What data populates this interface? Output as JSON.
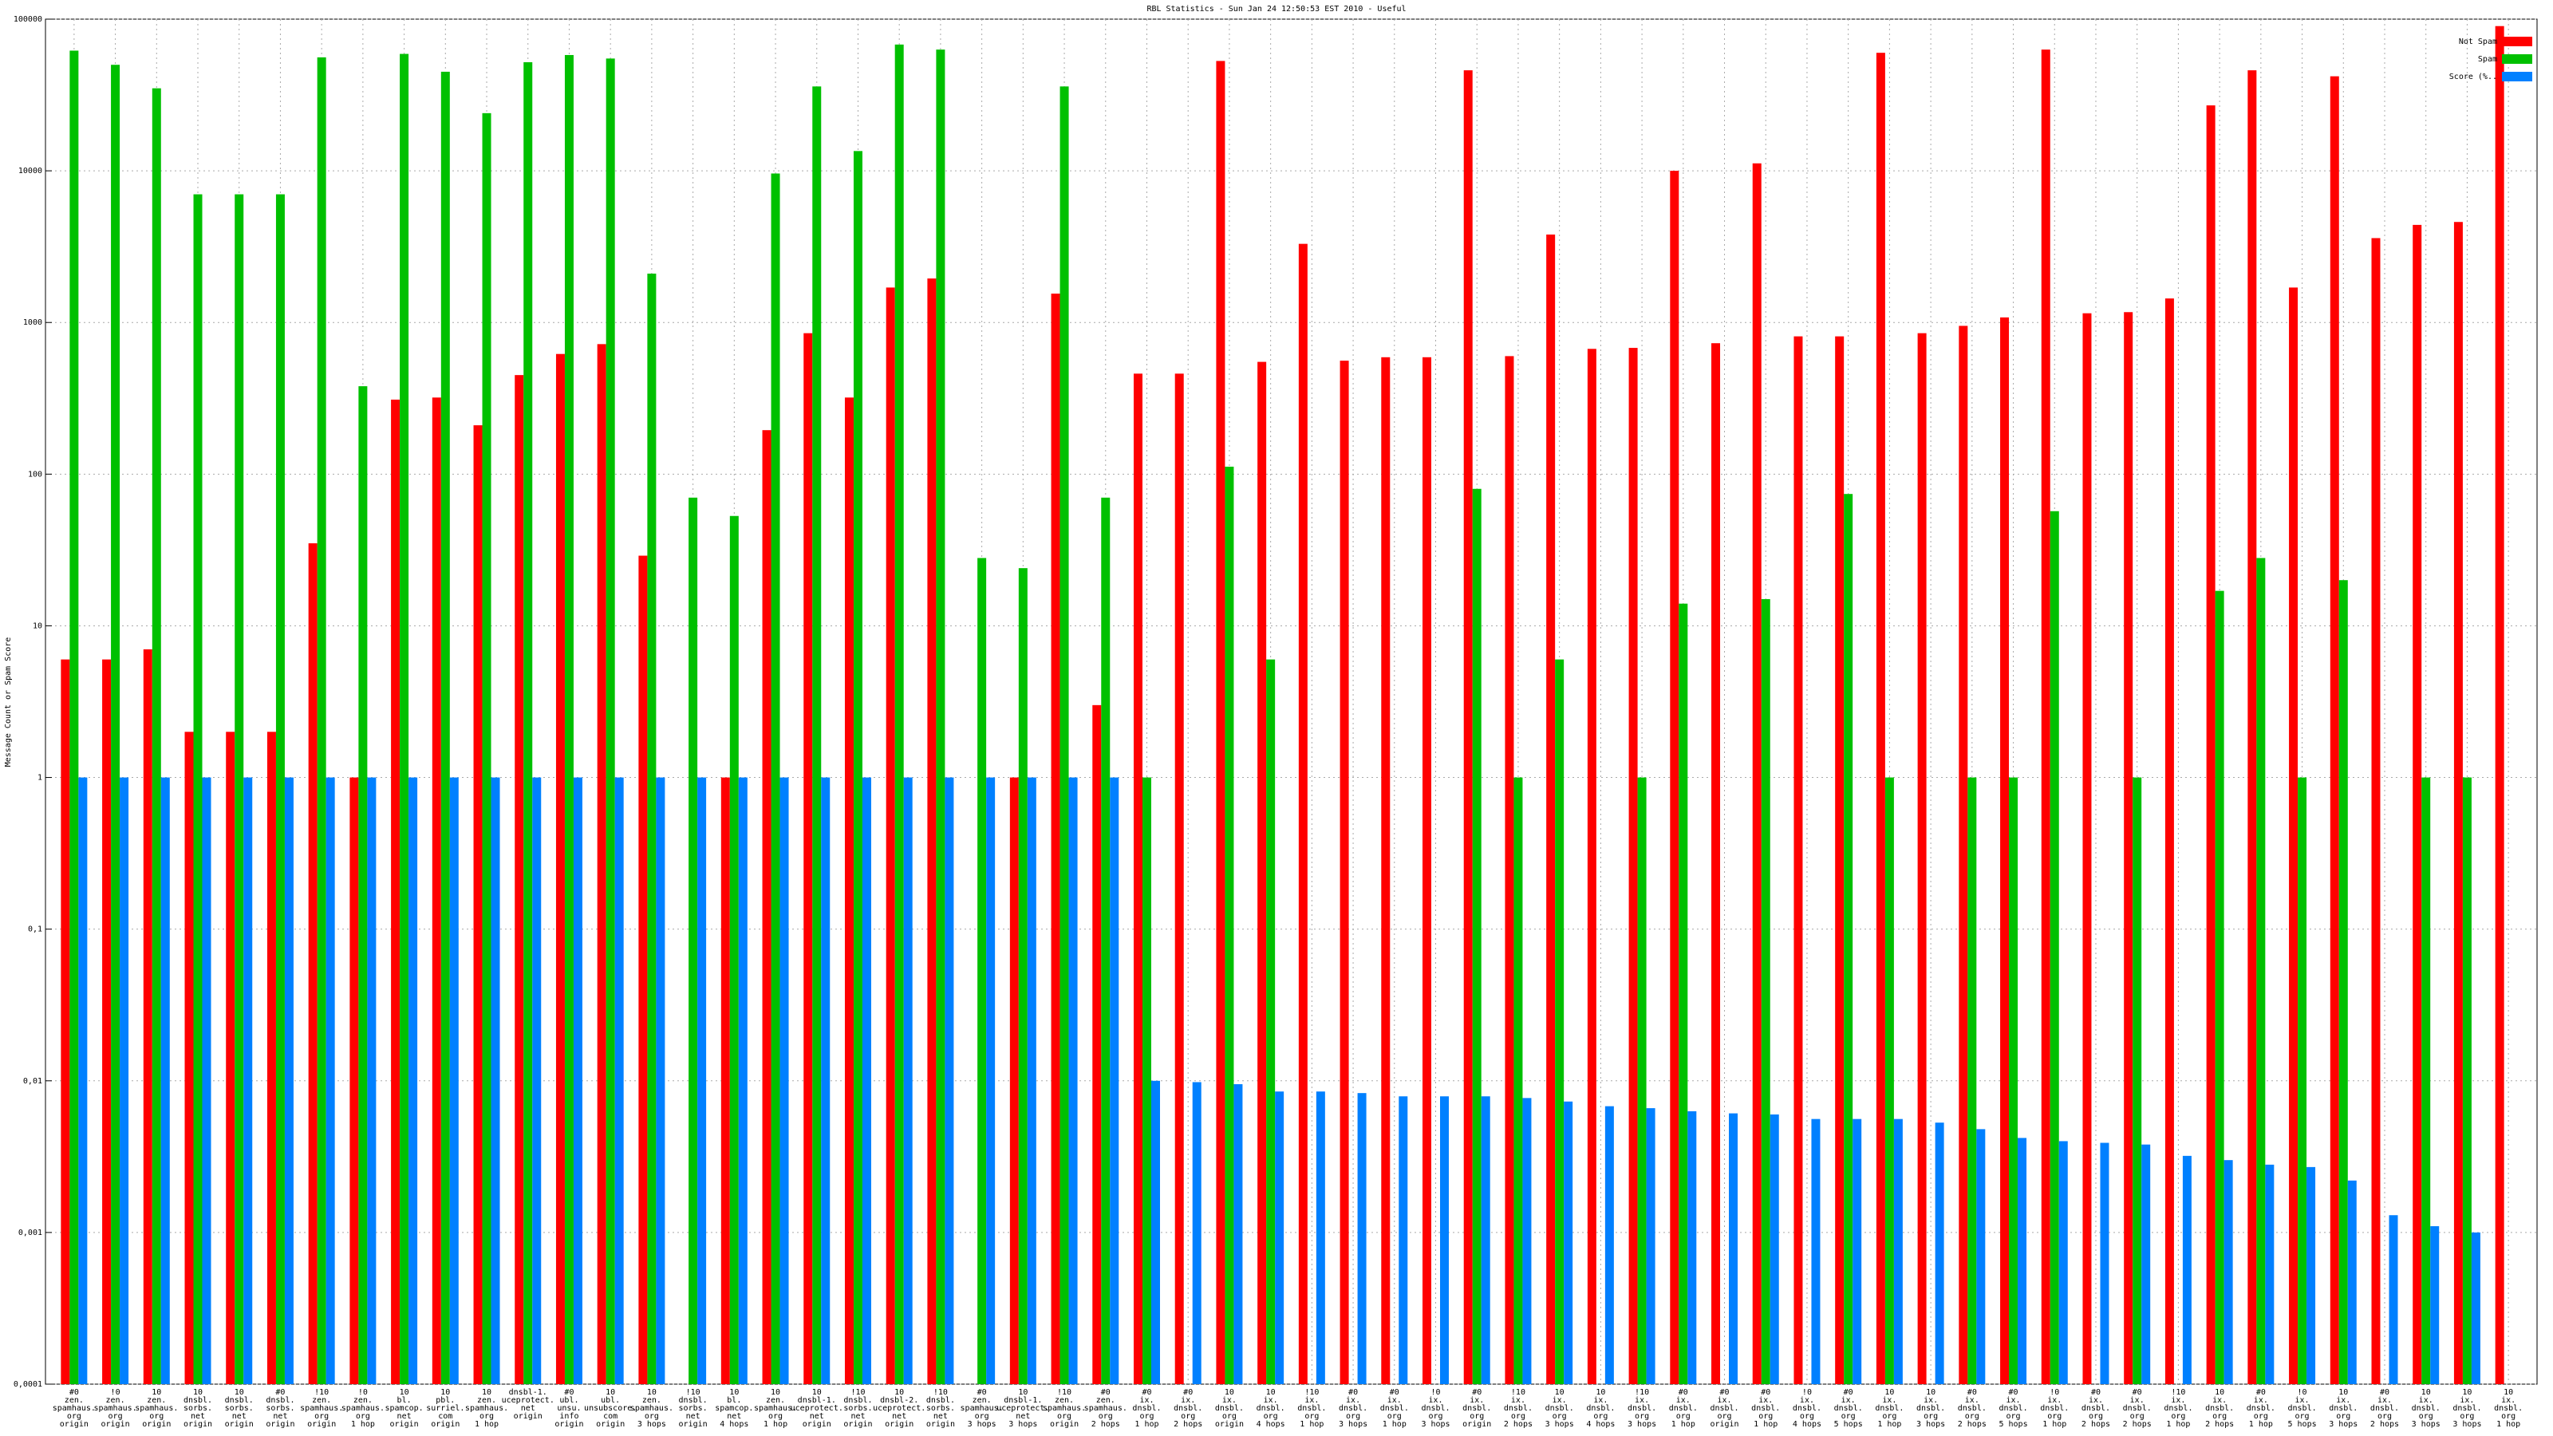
{
  "chart_data": {
    "type": "bar",
    "title": "RBL Statistics - Sun Jan 24 12:50:53 EST 2010 - Useful",
    "y_label": "Message Count or Spam Score",
    "log_scale": true,
    "grid": true,
    "legend": "top-right",
    "categories": [
      [
        "#0",
        "zen.",
        "spamhaus.",
        "org",
        "origin"
      ],
      [
        "!0",
        "zen.",
        "spamhaus.",
        "org",
        "origin"
      ],
      [
        "10",
        "zen.",
        "spamhaus.",
        "org",
        "origin"
      ],
      [
        "10",
        "dnsbl.",
        "sorbs.",
        "net",
        "origin"
      ],
      [
        "10",
        "dnsbl.",
        "sorbs.",
        "net",
        "origin"
      ],
      [
        "#0",
        "dnsbl.",
        "sorbs.",
        "net",
        "origin"
      ],
      [
        "!10",
        "zen.",
        "spamhaus.",
        "org",
        "origin"
      ],
      [
        "!0",
        "zen.",
        "spamhaus.",
        "org",
        "1 hop"
      ],
      [
        "10",
        "bl.",
        "spamcop.",
        "net",
        "origin"
      ],
      [
        "10",
        "pbl.",
        "surriel.",
        "com",
        "origin"
      ],
      [
        "10",
        "zen.",
        "spamhaus.",
        "org",
        "1 hop"
      ],
      [
        "dnsbl-1.",
        "uceprotect.",
        "net",
        "origin"
      ],
      [
        "#0",
        "ubl.",
        "unsu.",
        "info",
        "origin"
      ],
      [
        "10",
        "ubl.",
        "unsubscore.",
        "com",
        "origin"
      ],
      [
        "10",
        "zen.",
        "spamhaus.",
        "org",
        "3 hops"
      ],
      [
        "!10",
        "dnsbl.",
        "sorbs.",
        "net",
        "origin"
      ],
      [
        "10",
        "bl.",
        "spamcop.",
        "net",
        "4 hops"
      ],
      [
        "10",
        "zen.",
        "spamhaus.",
        "org",
        "1 hop"
      ],
      [
        "10",
        "dnsbl-1.",
        "uceprotect.",
        "net",
        "origin"
      ],
      [
        "!10",
        "dnsbl.",
        "sorbs.",
        "net",
        "origin"
      ],
      [
        "10",
        "dnsbl-2.",
        "uceprotect.",
        "net",
        "origin"
      ],
      [
        "!10",
        "dnsbl.",
        "sorbs.",
        "net",
        "origin"
      ],
      [
        "#0",
        "zen.",
        "spamhaus.",
        "org",
        "3 hops"
      ],
      [
        "10",
        "dnsbl-1.",
        "uceprotect.",
        "net",
        "3 hops"
      ],
      [
        "!10",
        "zen.",
        "spamhaus.",
        "org",
        "origin"
      ],
      [
        "#0",
        "zen.",
        "spamhaus.",
        "org",
        "2 hops"
      ],
      [
        "#0",
        "ix.",
        "dnsbl.",
        "org",
        "1 hop"
      ],
      [
        "#0",
        "ix.",
        "dnsbl.",
        "org",
        "2 hops"
      ],
      [
        "10",
        "ix.",
        "dnsbl.",
        "org",
        "origin"
      ],
      [
        "10",
        "ix.",
        "dnsbl.",
        "org",
        "4 hops"
      ],
      [
        "!10",
        "ix.",
        "dnsbl.",
        "org",
        "1 hop"
      ],
      [
        "#0",
        "ix.",
        "dnsbl.",
        "org",
        "3 hops"
      ],
      [
        "#0",
        "ix.",
        "dnsbl.",
        "org",
        "1 hop"
      ],
      [
        "!0",
        "ix.",
        "dnsbl.",
        "org",
        "3 hops"
      ],
      [
        "#0",
        "ix.",
        "dnsbl.",
        "org",
        "origin"
      ],
      [
        "!10",
        "ix.",
        "dnsbl.",
        "org",
        "2 hops"
      ],
      [
        "10",
        "ix.",
        "dnsbl.",
        "org",
        "3 hops"
      ],
      [
        "10",
        "ix.",
        "dnsbl.",
        "org",
        "4 hops"
      ],
      [
        "!10",
        "ix.",
        "dnsbl.",
        "org",
        "3 hops"
      ],
      [
        "#0",
        "ix.",
        "dnsbl.",
        "org",
        "1 hop"
      ],
      [
        "#0",
        "ix.",
        "dnsbl.",
        "org",
        "origin"
      ],
      [
        "#0",
        "ix.",
        "dnsbl.",
        "org",
        "1 hop"
      ],
      [
        "!0",
        "ix.",
        "dnsbl.",
        "org",
        "4 hops"
      ],
      [
        "#0",
        "ix.",
        "dnsbl.",
        "org",
        "5 hops"
      ],
      [
        "10",
        "ix.",
        "dnsbl.",
        "org",
        "1 hop"
      ],
      [
        "10",
        "ix.",
        "dnsbl.",
        "org",
        "3 hops"
      ],
      [
        "#0",
        "ix.",
        "dnsbl.",
        "org",
        "2 hops"
      ],
      [
        "#0",
        "ix.",
        "dnsbl.",
        "org",
        "5 hops"
      ],
      [
        "!0",
        "ix.",
        "dnsbl.",
        "org",
        "1 hop"
      ],
      [
        "#0",
        "ix.",
        "dnsbl.",
        "org",
        "2 hops"
      ],
      [
        "#0",
        "ix.",
        "dnsbl.",
        "org",
        "2 hops"
      ],
      [
        "!10",
        "ix.",
        "dnsbl.",
        "org",
        "1 hop"
      ],
      [
        "10",
        "ix.",
        "dnsbl.",
        "org",
        "2 hops"
      ],
      [
        "#0",
        "ix.",
        "dnsbl.",
        "org",
        "1 hop"
      ],
      [
        "!0",
        "ix.",
        "dnsbl.",
        "org",
        "5 hops"
      ],
      [
        "10",
        "ix.",
        "dnsbl.",
        "org",
        "3 hops"
      ],
      [
        "#0",
        "ix.",
        "dnsbl.",
        "org",
        "2 hops"
      ],
      [
        "10",
        "ix.",
        "dnsbl.",
        "org",
        "3 hops"
      ],
      [
        "10",
        "ix.",
        "dnsbl.",
        "org",
        "3 hops"
      ],
      [
        "10",
        "ix.",
        "dnsbl.",
        "org",
        "1 hop"
      ]
    ],
    "series": [
      {
        "name": "Not Spam",
        "color": "#ff0000",
        "values": [
          6,
          6,
          7,
          2,
          2,
          2,
          35,
          1,
          310,
          320,
          210,
          450,
          620,
          720,
          29,
          null,
          1,
          195,
          850,
          320,
          1700,
          1950,
          null,
          1,
          1550,
          3,
          460,
          460,
          53000,
          550,
          3300,
          560,
          590,
          590,
          46000,
          600,
          3800,
          670,
          680,
          10000,
          730,
          11200,
          810,
          810,
          60000,
          850,
          950,
          1080,
          63000,
          1150,
          1170,
          1440,
          27000,
          46000,
          1700,
          42000,
          3600,
          4400,
          4600,
          90000
        ]
      },
      {
        "name": "Spam",
        "color": "#00c000",
        "values": [
          62000,
          50000,
          35000,
          7000,
          7000,
          7000,
          56000,
          380,
          59000,
          45000,
          24000,
          52000,
          58000,
          55000,
          2100,
          70,
          53,
          9600,
          36000,
          13500,
          68000,
          63000,
          28,
          24,
          36000,
          70,
          1,
          null,
          112,
          6,
          null,
          null,
          null,
          null,
          80,
          1,
          6,
          null,
          1,
          14,
          null,
          15,
          null,
          74,
          1,
          null,
          1,
          1,
          57,
          null,
          1,
          null,
          17,
          28,
          1,
          20,
          null,
          1,
          1,
          null
        ]
      },
      {
        "name": "Score (%..",
        "color": "#0080ff",
        "values": [
          1,
          1,
          1,
          1,
          1,
          1,
          1,
          1,
          1,
          1,
          1,
          1,
          1,
          1,
          1,
          1,
          1,
          1,
          1,
          1,
          1,
          1,
          1,
          1,
          1,
          1,
          0.01,
          0.0098,
          0.0095,
          0.0085,
          0.0085,
          0.0083,
          0.0079,
          0.0079,
          0.0079,
          0.0077,
          0.0073,
          0.0068,
          0.0066,
          0.0063,
          0.0061,
          0.006,
          0.0056,
          0.0056,
          0.0056,
          0.0053,
          0.0048,
          0.0042,
          0.004,
          0.0039,
          0.0038,
          0.0032,
          0.003,
          0.0028,
          0.0027,
          0.0022,
          0.0013,
          0.0011,
          0.001,
          null
        ]
      }
    ],
    "ylim": [
      0.0001,
      100000
    ],
    "yticks": [
      {
        "value": 0.0001,
        "label": "0,0001"
      },
      {
        "value": 0.001,
        "label": "0,001"
      },
      {
        "value": 0.01,
        "label": "0,01"
      },
      {
        "value": 0.1,
        "label": "0,1"
      },
      1,
      10,
      100,
      1000,
      10000,
      100000
    ]
  }
}
